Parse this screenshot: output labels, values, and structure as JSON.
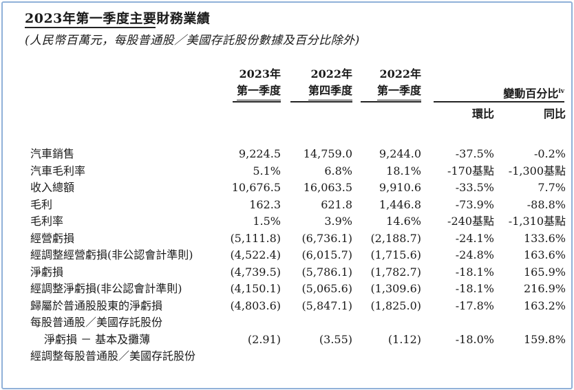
{
  "title": "2023年第一季度主要財務業績",
  "subtitle": "(人民幣百萬元，每股普通股／美國存託股份數據及百分比除外)",
  "columns": [
    {
      "line1": "2023年",
      "line2": "第一季度"
    },
    {
      "line1": "2022年",
      "line2": "第四季度"
    },
    {
      "line1": "2022年",
      "line2": "第一季度"
    }
  ],
  "change_header": "變動百分比",
  "change_header_sup": "iv",
  "change_sub": [
    "環比",
    "同比"
  ],
  "rows": [
    {
      "label": "汽車銷售",
      "v": [
        "9,224.5",
        "14,759.0",
        "9,244.0",
        "-37.5%",
        "-0.2%"
      ]
    },
    {
      "label": "汽車毛利率",
      "v": [
        "5.1%",
        "6.8%",
        "18.1%",
        "-170基點",
        "-1,300基點"
      ]
    },
    {
      "label": "收入總額",
      "v": [
        "10,676.5",
        "16,063.5",
        "9,910.6",
        "-33.5%",
        "7.7%"
      ]
    },
    {
      "label": "毛利",
      "v": [
        "162.3",
        "621.8",
        "1,446.8",
        "-73.9%",
        "-88.8%"
      ]
    },
    {
      "label": "毛利率",
      "v": [
        "1.5%",
        "3.9%",
        "14.6%",
        "-240基點",
        "-1,310基點"
      ]
    },
    {
      "label": "經營虧損",
      "v": [
        "(5,111.8)",
        "(6,736.1)",
        "(2,188.7)",
        "-24.1%",
        "133.6%"
      ]
    },
    {
      "label": "經調整經營虧損(非公認會計準則)",
      "v": [
        "(4,522.4)",
        "(6,015.7)",
        "(1,715.6)",
        "-24.8%",
        "163.6%"
      ]
    },
    {
      "label": "淨虧損",
      "v": [
        "(4,739.5)",
        "(5,786.1)",
        "(1,782.7)",
        "-18.1%",
        "165.9%"
      ]
    },
    {
      "label": "經調整淨虧損(非公認會計準則)",
      "v": [
        "(4,150.1)",
        "(5,065.6)",
        "(1,309.6)",
        "-18.1%",
        "216.9%"
      ]
    },
    {
      "label": "歸屬於普通股股東的淨虧損",
      "v": [
        "(4,803.6)",
        "(5,847.1)",
        "(1,825.0)",
        "-17.8%",
        "163.2%"
      ]
    },
    {
      "label": "每股普通股／美國存託股份",
      "v": [
        "",
        "",
        "",
        "",
        ""
      ]
    },
    {
      "label": "淨虧損 － 基本及攤薄",
      "indent": true,
      "v": [
        "(2.91)",
        "(3.55)",
        "(1.12)",
        "-18.0%",
        "159.8%"
      ]
    },
    {
      "label": "經調整每股普通股／美國存託股份",
      "v": [
        "",
        "",
        "",
        "",
        ""
      ]
    }
  ]
}
